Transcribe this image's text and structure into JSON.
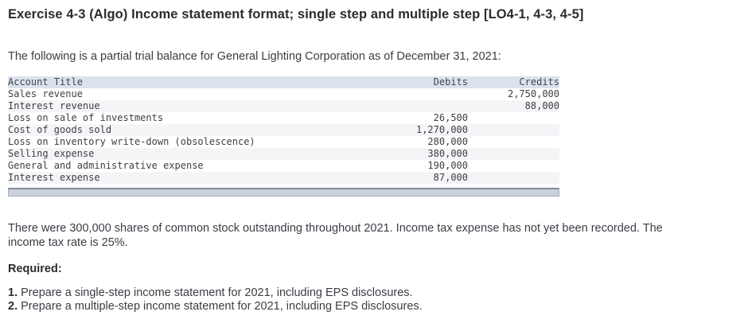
{
  "header": {
    "title": "Exercise 4-3 (Algo) Income statement format; single step and multiple step [LO4-1, 4-3, 4-5]"
  },
  "intro": {
    "text": "The following is a partial trial balance for General Lighting Corporation as of December 31, 2021:"
  },
  "trial_balance": {
    "columns": [
      "Account Title",
      "Debits",
      "Credits"
    ],
    "rows": [
      {
        "account": "Sales revenue",
        "debit": "",
        "credit": "2,750,000"
      },
      {
        "account": "Interest revenue",
        "debit": "",
        "credit": "88,000"
      },
      {
        "account": "Loss on sale of investments",
        "debit": "26,500",
        "credit": ""
      },
      {
        "account": "Cost of goods sold",
        "debit": "1,270,000",
        "credit": ""
      },
      {
        "account": "Loss on inventory write-down (obsolescence)",
        "debit": "280,000",
        "credit": ""
      },
      {
        "account": "Selling expense",
        "debit": "380,000",
        "credit": ""
      },
      {
        "account": "General and administrative expense",
        "debit": "190,000",
        "credit": ""
      },
      {
        "account": "Interest expense",
        "debit": "87,000",
        "credit": ""
      }
    ]
  },
  "notes": {
    "line1": "There were 300,000 shares of common stock outstanding throughout 2021. Income tax expense has not yet been recorded. The",
    "line2": "income tax rate is 25%."
  },
  "required": {
    "label": "Required:",
    "items": [
      {
        "num": "1.",
        "text": "Prepare a single-step income statement for 2021, including EPS disclosures."
      },
      {
        "num": "2.",
        "text": "Prepare a multiple-step income statement for 2021, including EPS disclosures."
      }
    ]
  },
  "colors": {
    "table_header_bg": "#dbe2ec",
    "table_alt_row_bg": "#f4f5f7",
    "scrollbar_fill": "#cad1dc",
    "scrollbar_border": "#848b96"
  }
}
